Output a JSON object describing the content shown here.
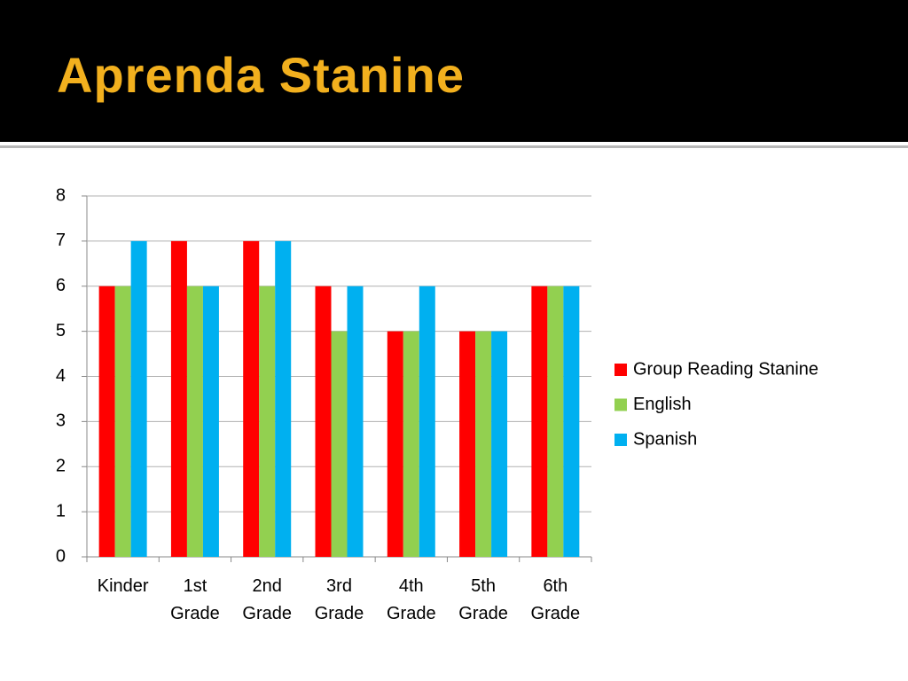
{
  "chart_data": {
    "type": "bar",
    "title": "Aprenda Stanine",
    "categories": [
      "Kinder",
      "1st Grade",
      "2nd Grade",
      "3rd Grade",
      "4th Grade",
      "5th Grade",
      "6th Grade"
    ],
    "series": [
      {
        "name": "Group Reading Stanine",
        "color": "#ff0000",
        "values": [
          6,
          7,
          7,
          6,
          5,
          5,
          6
        ]
      },
      {
        "name": "English",
        "color": "#92d050",
        "values": [
          6,
          6,
          6,
          5,
          5,
          5,
          6
        ]
      },
      {
        "name": "Spanish",
        "color": "#00b0f0",
        "values": [
          7,
          6,
          7,
          6,
          6,
          5,
          6
        ]
      }
    ],
    "ylim": [
      0,
      8
    ],
    "yticks": [
      0,
      1,
      2,
      3,
      4,
      5,
      6,
      7,
      8
    ],
    "grid": true,
    "legend": "right"
  }
}
